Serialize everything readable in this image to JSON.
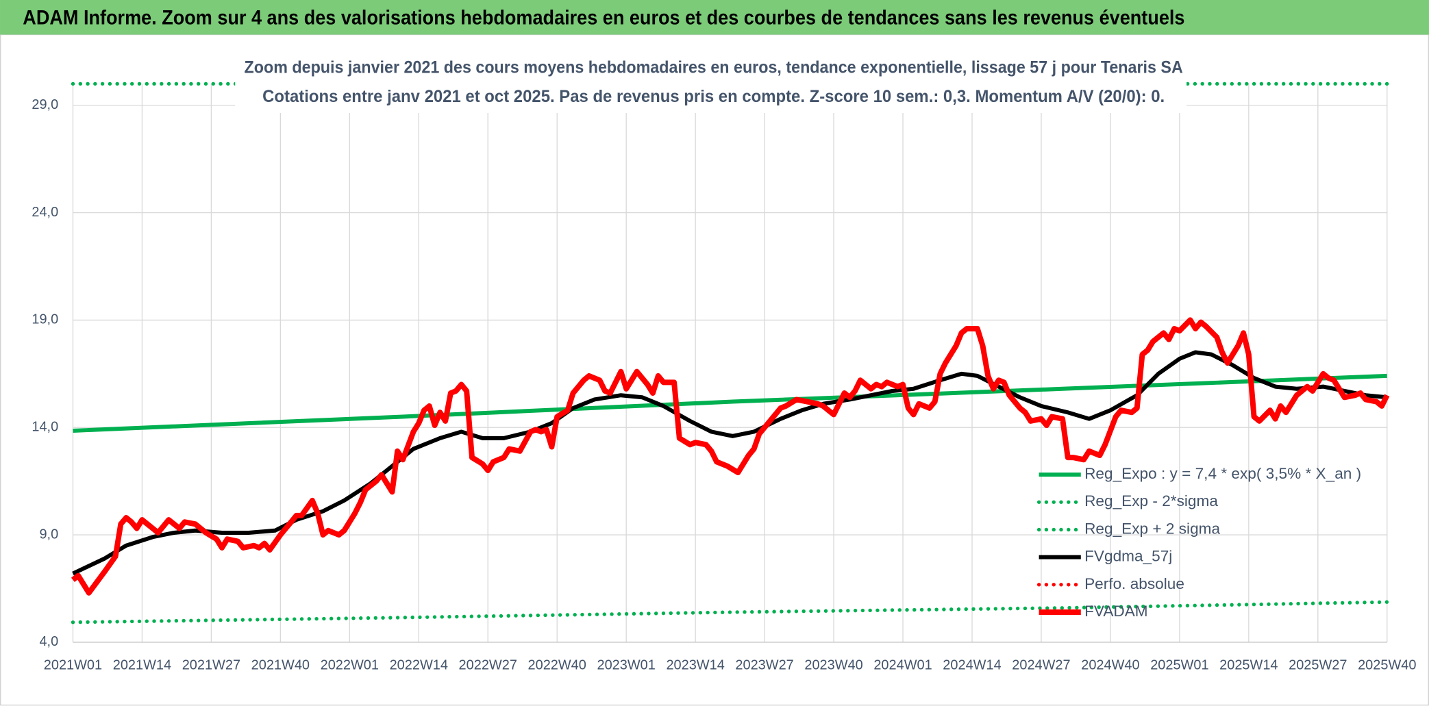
{
  "chart_data": {
    "type": "line",
    "title": "ADAM Informe. Zoom sur 4 ans des valorisations hebdomadaires en euros et des courbes de tendances sans les revenus éventuels",
    "subtitle": [
      "Zoom depuis janvier 2021 des cours moyens hebdomadaires en euros, tendance exponentielle, lissage 57 j pour Tenaris SA",
      "Cotations entre janv 2021 et oct 2025. Pas de revenus pris en compte. Z-score 10 sem.: 0,3. Momentum A/V (20/0): 0."
    ],
    "xlim": [
      0,
      247
    ],
    "xticks": [
      {
        "value": 0,
        "label": "2021W01"
      },
      {
        "value": 13,
        "label": "2021W14"
      },
      {
        "value": 26,
        "label": "2021W27"
      },
      {
        "value": 39,
        "label": "2021W40"
      },
      {
        "value": 52,
        "label": "2022W01"
      },
      {
        "value": 65,
        "label": "2022W14"
      },
      {
        "value": 78,
        "label": "2022W27"
      },
      {
        "value": 91,
        "label": "2022W40"
      },
      {
        "value": 104,
        "label": "2023W01"
      },
      {
        "value": 117,
        "label": "2023W14"
      },
      {
        "value": 130,
        "label": "2023W27"
      },
      {
        "value": 143,
        "label": "2023W40"
      },
      {
        "value": 156,
        "label": "2024W01"
      },
      {
        "value": 169,
        "label": "2024W14"
      },
      {
        "value": 182,
        "label": "2024W27"
      },
      {
        "value": 195,
        "label": "2024W40"
      },
      {
        "value": 208,
        "label": "2025W01"
      },
      {
        "value": 221,
        "label": "2025W14"
      },
      {
        "value": 234,
        "label": "2025W27"
      },
      {
        "value": 247,
        "label": "2025W40"
      }
    ],
    "ylim": [
      4,
      30
    ],
    "yticks": [
      {
        "value": 4,
        "label": "4,0"
      },
      {
        "value": 9,
        "label": "9,0"
      },
      {
        "value": 14,
        "label": "14,0"
      },
      {
        "value": 19,
        "label": "19,0"
      },
      {
        "value": 24,
        "label": "24,0"
      },
      {
        "value": 29,
        "label": "29,0"
      }
    ],
    "grid": true,
    "legend": "right",
    "series": [
      {
        "name": "Reg_Expo : y = 7,4 * exp( 3,5% *  X_an )",
        "color": "#00b050",
        "style": "solid",
        "x": [
          0,
          62,
          124,
          186,
          247
        ],
        "values": [
          13.85,
          14.5,
          15.2,
          15.8,
          16.4
        ]
      },
      {
        "name": "Reg_Exp - 2*sigma",
        "color": "#00b050",
        "style": "dotted",
        "x": [
          0,
          62,
          124,
          186,
          247
        ],
        "values": [
          4.93,
          5.15,
          5.4,
          5.6,
          5.87
        ]
      },
      {
        "name": "Reg_Exp + 2 sigma",
        "color": "#00b050",
        "style": "dotted",
        "x": [
          0,
          247
        ],
        "values": [
          30,
          30
        ]
      },
      {
        "name": "FVgdma_57j",
        "color": "#000000",
        "style": "solid",
        "x": [
          0,
          6,
          10,
          15,
          19,
          23,
          28,
          33,
          38,
          42,
          47,
          51,
          56,
          60,
          64,
          69,
          73,
          77,
          81,
          86,
          90,
          94,
          98,
          103,
          107,
          111,
          116,
          120,
          124,
          128,
          133,
          137,
          141,
          146,
          150,
          154,
          158,
          163,
          167,
          170,
          174,
          178,
          182,
          187,
          191,
          195,
          200,
          204,
          208,
          211,
          214,
          218,
          222,
          226,
          230,
          235,
          239,
          243,
          247
        ],
        "values": [
          7.2,
          7.9,
          8.5,
          8.9,
          9.1,
          9.2,
          9.1,
          9.1,
          9.2,
          9.7,
          10.1,
          10.6,
          11.4,
          12.2,
          13.0,
          13.5,
          13.8,
          13.5,
          13.5,
          13.8,
          14.2,
          14.9,
          15.3,
          15.5,
          15.4,
          15.0,
          14.3,
          13.8,
          13.6,
          13.8,
          14.4,
          14.8,
          15.1,
          15.3,
          15.5,
          15.7,
          15.8,
          16.2,
          16.5,
          16.4,
          15.9,
          15.4,
          15.0,
          14.7,
          14.4,
          14.8,
          15.5,
          16.5,
          17.2,
          17.5,
          17.4,
          16.9,
          16.3,
          15.9,
          15.8,
          15.9,
          15.7,
          15.5,
          15.4
        ]
      },
      {
        "name": "Perfo. absolue",
        "color": "#ff0000",
        "style": "dotted",
        "x": [],
        "values": []
      },
      {
        "name": "FVADAM",
        "color": "#ff0000",
        "style": "solid",
        "x": [
          0,
          1,
          3,
          6,
          8,
          9,
          10,
          11,
          12,
          13,
          15,
          16,
          18,
          20,
          21,
          23,
          25,
          27,
          28,
          29,
          31,
          32,
          34,
          35,
          36,
          37,
          39,
          41,
          42,
          43,
          45,
          46,
          47,
          48,
          50,
          51,
          53,
          54,
          55,
          57,
          58,
          60,
          61,
          62,
          64,
          65,
          66,
          67,
          68,
          69,
          70,
          71,
          72,
          73,
          74,
          75,
          77,
          78,
          79,
          81,
          82,
          84,
          86,
          87,
          88,
          89,
          90,
          91,
          93,
          94,
          96,
          97,
          98,
          99,
          100,
          101,
          103,
          104,
          105,
          106,
          108,
          109,
          110,
          111,
          113,
          114,
          116,
          117,
          119,
          120,
          121,
          123,
          125,
          127,
          128,
          129,
          131,
          133,
          134,
          136,
          138,
          140,
          141,
          143,
          145,
          146,
          147,
          148,
          150,
          151,
          152,
          153,
          155,
          156,
          157,
          158,
          159,
          161,
          162,
          163,
          164,
          166,
          167,
          168,
          170,
          171,
          172,
          173,
          174,
          175,
          176,
          178,
          179,
          180,
          182,
          183,
          184,
          186,
          187,
          188,
          190,
          191,
          193,
          194,
          196,
          197,
          199,
          200,
          201,
          202,
          203,
          205,
          206,
          207,
          208,
          210,
          211,
          212,
          213,
          215,
          216,
          217,
          219,
          220,
          221,
          222,
          223,
          225,
          226,
          227,
          228,
          230,
          232,
          233,
          235,
          236,
          237,
          239,
          241,
          242,
          243,
          245,
          246,
          247
        ],
        "values": [
          6.9,
          7.1,
          6.3,
          7.3,
          8.0,
          9.5,
          9.8,
          9.6,
          9.3,
          9.7,
          9.3,
          9.1,
          9.7,
          9.3,
          9.6,
          9.5,
          9.1,
          8.8,
          8.4,
          8.8,
          8.7,
          8.4,
          8.5,
          8.4,
          8.6,
          8.3,
          9.0,
          9.6,
          9.9,
          9.9,
          10.6,
          10.0,
          9.0,
          9.2,
          9.0,
          9.2,
          10.0,
          10.5,
          11.1,
          11.5,
          11.8,
          11.0,
          12.9,
          12.5,
          13.8,
          14.2,
          14.8,
          15.0,
          14.1,
          14.7,
          14.3,
          15.6,
          15.7,
          16.0,
          15.7,
          12.6,
          12.3,
          12.0,
          12.4,
          12.6,
          13.0,
          12.9,
          13.8,
          13.9,
          13.8,
          13.9,
          13.1,
          14.5,
          14.8,
          15.6,
          16.2,
          16.4,
          16.3,
          16.2,
          15.7,
          15.6,
          16.6,
          15.8,
          16.2,
          16.6,
          16.0,
          15.6,
          16.4,
          16.1,
          16.1,
          13.5,
          13.2,
          13.3,
          13.2,
          12.9,
          12.4,
          12.2,
          11.9,
          12.7,
          13.0,
          13.7,
          14.3,
          14.9,
          15.0,
          15.3,
          15.2,
          15.1,
          15.0,
          14.6,
          15.6,
          15.4,
          15.7,
          16.2,
          15.8,
          16.0,
          15.9,
          16.1,
          15.9,
          16.0,
          14.9,
          14.6,
          15.1,
          14.9,
          15.2,
          16.5,
          17.0,
          17.8,
          18.4,
          18.6,
          18.6,
          17.8,
          16.4,
          15.8,
          16.2,
          16.1,
          15.5,
          14.9,
          14.7,
          14.3,
          14.4,
          14.1,
          14.5,
          14.4,
          12.6,
          12.6,
          12.5,
          12.9,
          12.7,
          13.2,
          14.5,
          14.8,
          14.7,
          14.9,
          17.4,
          17.6,
          18.0,
          18.4,
          18.1,
          18.6,
          18.5,
          19.0,
          18.6,
          18.9,
          18.7,
          18.2,
          17.5,
          17.0,
          17.8,
          18.4,
          17.4,
          14.5,
          14.3,
          14.8,
          14.4,
          15.0,
          14.7,
          15.5,
          15.9,
          15.7,
          16.5,
          16.3,
          16.2,
          15.4,
          15.5,
          15.6,
          15.3,
          15.2,
          15.0,
          15.5
        ]
      }
    ]
  }
}
